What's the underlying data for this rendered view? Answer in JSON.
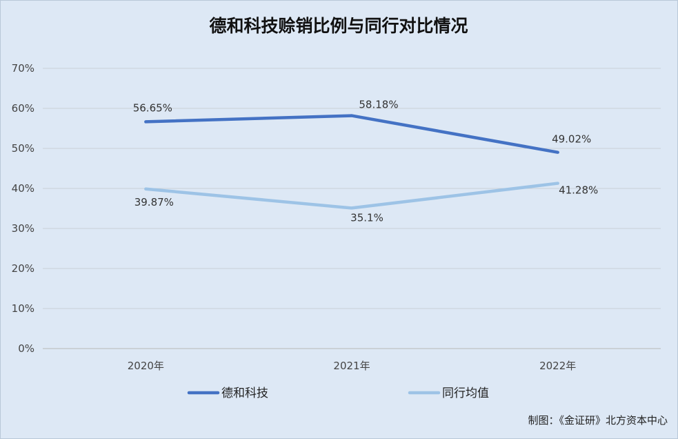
{
  "chart_data": {
    "type": "line",
    "title": "德和科技赊销比例与同行对比情况",
    "xlabel": "",
    "ylabel": "",
    "categories": [
      "2020年",
      "2021年",
      "2022年"
    ],
    "ylim": [
      0,
      70
    ],
    "y_ticks": [
      "0%",
      "10%",
      "20%",
      "30%",
      "40%",
      "50%",
      "60%",
      "70%"
    ],
    "grid": true,
    "legend_position": "bottom",
    "series": [
      {
        "name": "德和科技",
        "values": [
          56.65,
          58.18,
          49.02
        ],
        "labels": [
          "56.65%",
          "58.18%",
          "49.02%"
        ],
        "color": "#4472c4"
      },
      {
        "name": "同行均值",
        "values": [
          39.87,
          35.1,
          41.28
        ],
        "labels": [
          "39.87%",
          "35.1%",
          "41.28%"
        ],
        "color": "#9dc3e6"
      }
    ]
  },
  "footer": "制图：《金证研》北方资本中心"
}
